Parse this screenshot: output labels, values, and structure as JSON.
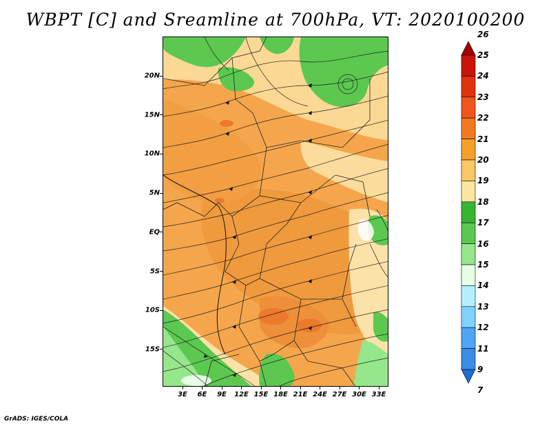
{
  "title": "WBPT [C] and Sreamline at 700hPa, VT: 2020100200",
  "credit": "GrADS: IGES/COLA",
  "map": {
    "lat_labels": [
      "20N",
      "15N",
      "10N",
      "5N",
      "EQ",
      "5S",
      "10S",
      "15S"
    ],
    "lon_labels": [
      "3E",
      "6E",
      "9E",
      "12E",
      "15E",
      "18E",
      "21E",
      "24E",
      "27E",
      "30E",
      "33E"
    ]
  },
  "colorbar": {
    "labels": [
      "26",
      "25",
      "24",
      "23",
      "22",
      "21",
      "20",
      "19",
      "18",
      "17",
      "16",
      "15",
      "14",
      "13",
      "12",
      "11",
      "9",
      "7"
    ],
    "colors": [
      "#a50000",
      "#c8140a",
      "#e1320f",
      "#f0551e",
      "#f5781e",
      "#f5a028",
      "#fac864",
      "#fae6a0",
      "#37b432",
      "#5ac850",
      "#96e68c",
      "#e6ffe6",
      "#b4f0fa",
      "#82d2ff",
      "#50a5f5",
      "#3c8ce6",
      "#1e6ed2"
    ]
  }
}
